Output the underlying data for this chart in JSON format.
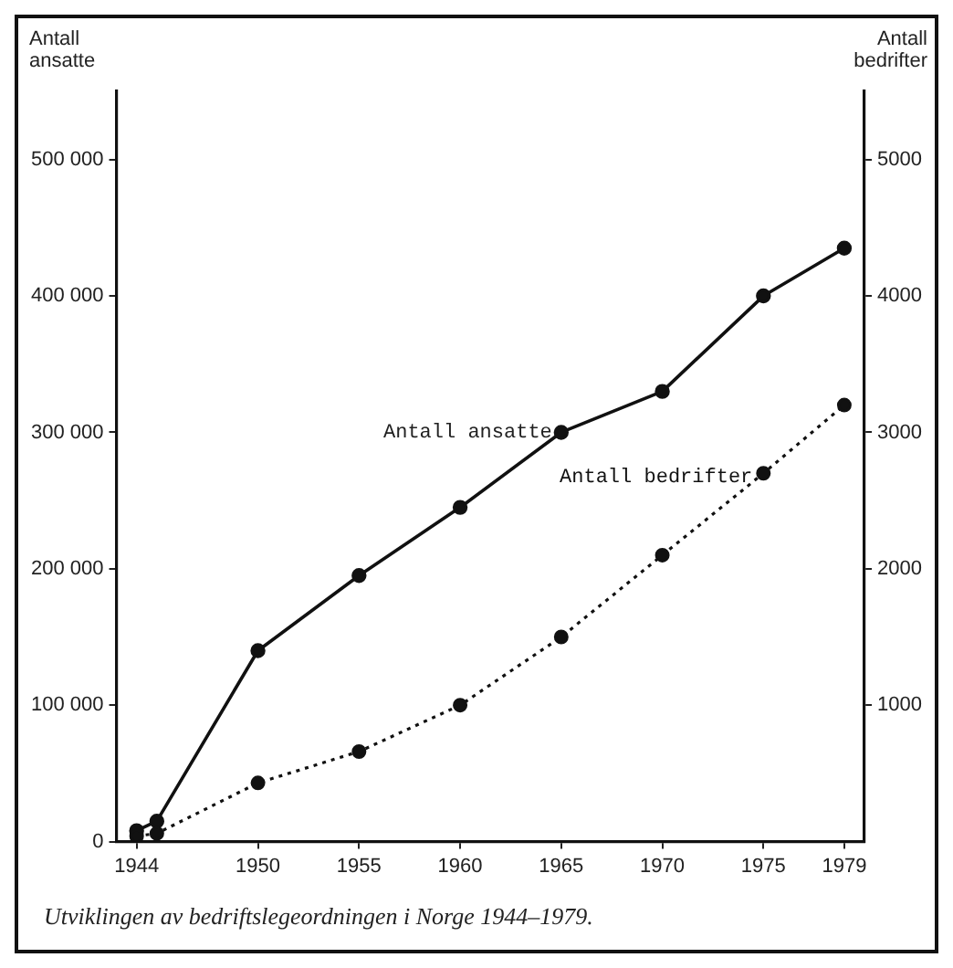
{
  "chart_data": {
    "type": "line",
    "ylabel": "Antall ansatte",
    "y2label": "Antall bedrifter",
    "x": [
      1944,
      1945,
      1950,
      1955,
      1960,
      1965,
      1970,
      1975,
      1979
    ],
    "series": [
      {
        "name": "Antall ansatte",
        "color": "#111111",
        "line_style": "solid",
        "values": [
          8000,
          15000,
          140000,
          195000,
          245000,
          300000,
          330000,
          400000,
          435000
        ]
      },
      {
        "name": "Antall bedrifter",
        "color": "#111111",
        "line_style": "dotted",
        "axis": "y2",
        "values": [
          40,
          60,
          430,
          660,
          1000,
          1500,
          2100,
          2700,
          3200
        ]
      }
    ],
    "xlim": [
      1943,
      1980
    ],
    "xticks": [
      1944,
      1950,
      1955,
      1960,
      1965,
      1970,
      1975,
      1979
    ],
    "ylim": [
      0,
      550000
    ],
    "yticks": [
      0,
      {
        "value": 100000,
        "label": "100 000"
      },
      {
        "value": 200000,
        "label": "200 000"
      },
      {
        "value": 300000,
        "label": "300 000"
      },
      {
        "value": 400000,
        "label": "400 000"
      },
      {
        "value": 500000,
        "label": "500 000"
      }
    ],
    "y2lim": [
      0,
      5500
    ],
    "y2ticks": [
      {
        "value": 1000,
        "label": "1000"
      },
      {
        "value": 2000,
        "label": "2000"
      },
      {
        "value": 3000,
        "label": "3000"
      },
      {
        "value": 4000,
        "label": "4000"
      },
      {
        "value": 5000,
        "label": "5000"
      }
    ],
    "marker": "circle",
    "grid": false,
    "legend": false,
    "annotations": [
      "Utviklingen av bedriftslegeordningen i Norge 1944–1979."
    ]
  }
}
